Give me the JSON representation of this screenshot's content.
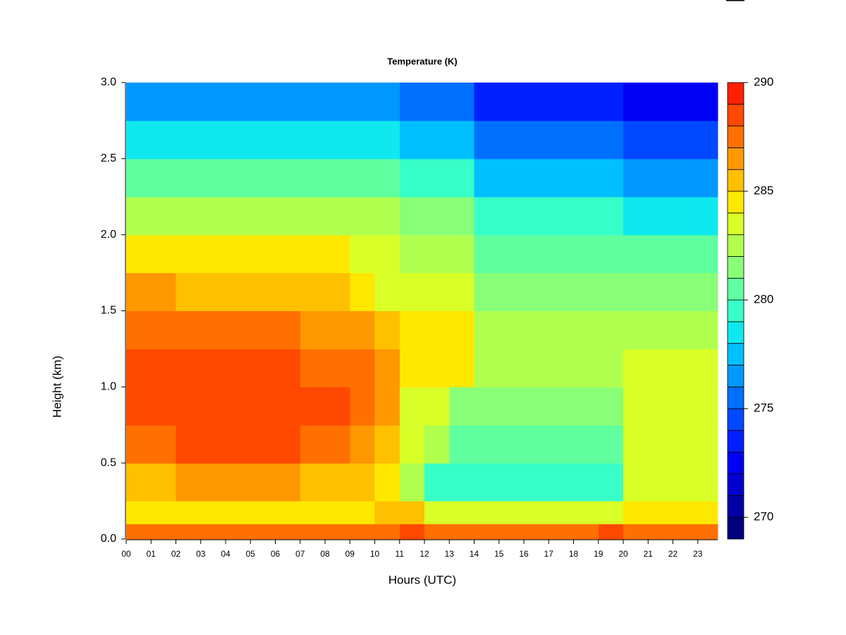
{
  "chart_data": {
    "type": "heatmap",
    "title": "Temperature (K)",
    "xlabel": "Hours (UTC)",
    "ylabel": "Height (km)",
    "xlim": [
      0,
      23.8
    ],
    "xticks": [
      {
        "value": 0,
        "label": "00"
      },
      {
        "value": 1,
        "label": "01"
      },
      {
        "value": 2,
        "label": "02"
      },
      {
        "value": 3,
        "label": "03"
      },
      {
        "value": 4,
        "label": "04"
      },
      {
        "value": 5,
        "label": "05"
      },
      {
        "value": 6,
        "label": "06"
      },
      {
        "value": 7,
        "label": "07"
      },
      {
        "value": 8,
        "label": "08"
      },
      {
        "value": 9,
        "label": "09"
      },
      10,
      11,
      12,
      13,
      14,
      15,
      16,
      17,
      18,
      19,
      20,
      21,
      22,
      23
    ],
    "ylim": [
      0,
      3
    ],
    "yticks": [
      {
        "value": 0,
        "label": "0.0"
      },
      0.5,
      {
        "value": 1,
        "label": "1.0"
      },
      1.5,
      {
        "value": 2,
        "label": "2.0"
      },
      2.5,
      {
        "value": 3,
        "label": "3.0"
      }
    ],
    "x": [
      0,
      1,
      2,
      3,
      4,
      5,
      6,
      7,
      8,
      9,
      10,
      11,
      12,
      13,
      14,
      15,
      16,
      17,
      18,
      19,
      20,
      21,
      22,
      23
    ],
    "y": [
      0,
      0.1,
      0.25,
      0.5,
      0.75,
      1.0,
      1.25,
      1.5,
      1.75,
      2.0,
      2.25,
      2.5,
      2.75
    ],
    "z": [
      [
        287,
        287,
        287,
        287,
        287,
        287,
        287,
        287,
        287,
        287,
        287,
        288,
        287,
        287,
        287,
        287,
        287,
        287,
        287,
        288,
        287,
        287,
        287,
        287
      ],
      [
        284,
        284,
        284,
        284,
        284,
        284,
        284,
        284,
        284,
        284,
        285,
        285,
        283,
        283,
        283,
        283,
        283,
        283,
        283,
        283,
        284,
        284,
        284,
        284
      ],
      [
        285,
        285,
        286,
        286,
        286,
        286,
        286,
        285,
        285,
        285,
        284,
        282,
        279,
        279,
        279,
        279,
        279,
        279,
        279,
        279,
        283,
        283,
        283,
        283
      ],
      [
        287,
        287,
        288,
        288,
        288,
        288,
        288,
        287,
        287,
        286,
        285,
        283,
        282,
        280,
        280,
        280,
        280,
        280,
        280,
        280,
        283,
        283,
        283,
        283
      ],
      [
        288,
        288,
        288,
        288,
        288,
        288,
        288,
        288,
        288,
        287,
        286,
        283,
        283,
        281,
        281,
        281,
        281,
        281,
        281,
        281,
        283,
        283,
        283,
        283
      ],
      [
        288,
        288,
        288,
        288,
        288,
        288,
        288,
        287,
        287,
        287,
        286,
        284,
        284,
        284,
        282,
        282,
        282,
        282,
        282,
        282,
        283,
        283,
        283,
        283
      ],
      [
        287,
        287,
        287,
        287,
        287,
        287,
        287,
        286,
        286,
        286,
        285,
        284,
        284,
        284,
        282,
        282,
        282,
        282,
        282,
        282,
        282,
        282,
        282,
        282
      ],
      [
        286,
        286,
        285,
        285,
        285,
        285,
        285,
        285,
        285,
        284,
        283,
        283,
        283,
        283,
        281,
        281,
        281,
        281,
        281,
        281,
        281,
        281,
        281,
        281
      ],
      [
        284,
        284,
        284,
        284,
        284,
        284,
        284,
        284,
        284,
        283,
        283,
        282,
        282,
        282,
        280,
        280,
        280,
        280,
        280,
        280,
        280,
        280,
        280,
        280
      ],
      [
        282,
        282,
        282,
        282,
        282,
        282,
        282,
        282,
        282,
        282,
        282,
        281,
        281,
        281,
        279,
        279,
        279,
        279,
        279,
        279,
        278,
        278,
        278,
        278
      ],
      [
        280,
        280,
        280,
        280,
        280,
        280,
        280,
        280,
        280,
        280,
        280,
        279,
        279,
        279,
        277,
        277,
        277,
        277,
        277,
        277,
        276,
        276,
        276,
        276
      ],
      [
        278,
        278,
        278,
        278,
        278,
        278,
        278,
        278,
        278,
        278,
        278,
        277,
        277,
        277,
        275,
        275,
        275,
        275,
        275,
        275,
        274,
        274,
        274,
        274
      ],
      [
        276,
        276,
        276,
        276,
        276,
        276,
        276,
        276,
        276,
        276,
        276,
        275,
        275,
        275,
        273,
        273,
        273,
        273,
        273,
        273,
        272,
        272,
        272,
        272
      ]
    ],
    "levels": [
      269,
      270,
      271,
      272,
      273,
      274,
      275,
      276,
      277,
      278,
      279,
      280,
      281,
      282,
      283,
      284,
      285,
      286,
      287,
      288,
      289,
      290
    ],
    "colors": [
      "#00007f",
      "#0000a6",
      "#0000cf",
      "#0000f5",
      "#0020ff",
      "#0048ff",
      "#0070ff",
      "#0098ff",
      "#00c0ff",
      "#10e8ef",
      "#38ffc7",
      "#60ff9f",
      "#88ff77",
      "#b0ff4f",
      "#d8ff27",
      "#ffe800",
      "#ffc000",
      "#ff9800",
      "#ff7000",
      "#ff4800",
      "#ff2000"
    ],
    "zticks": [
      270,
      275,
      280,
      285,
      290
    ]
  }
}
